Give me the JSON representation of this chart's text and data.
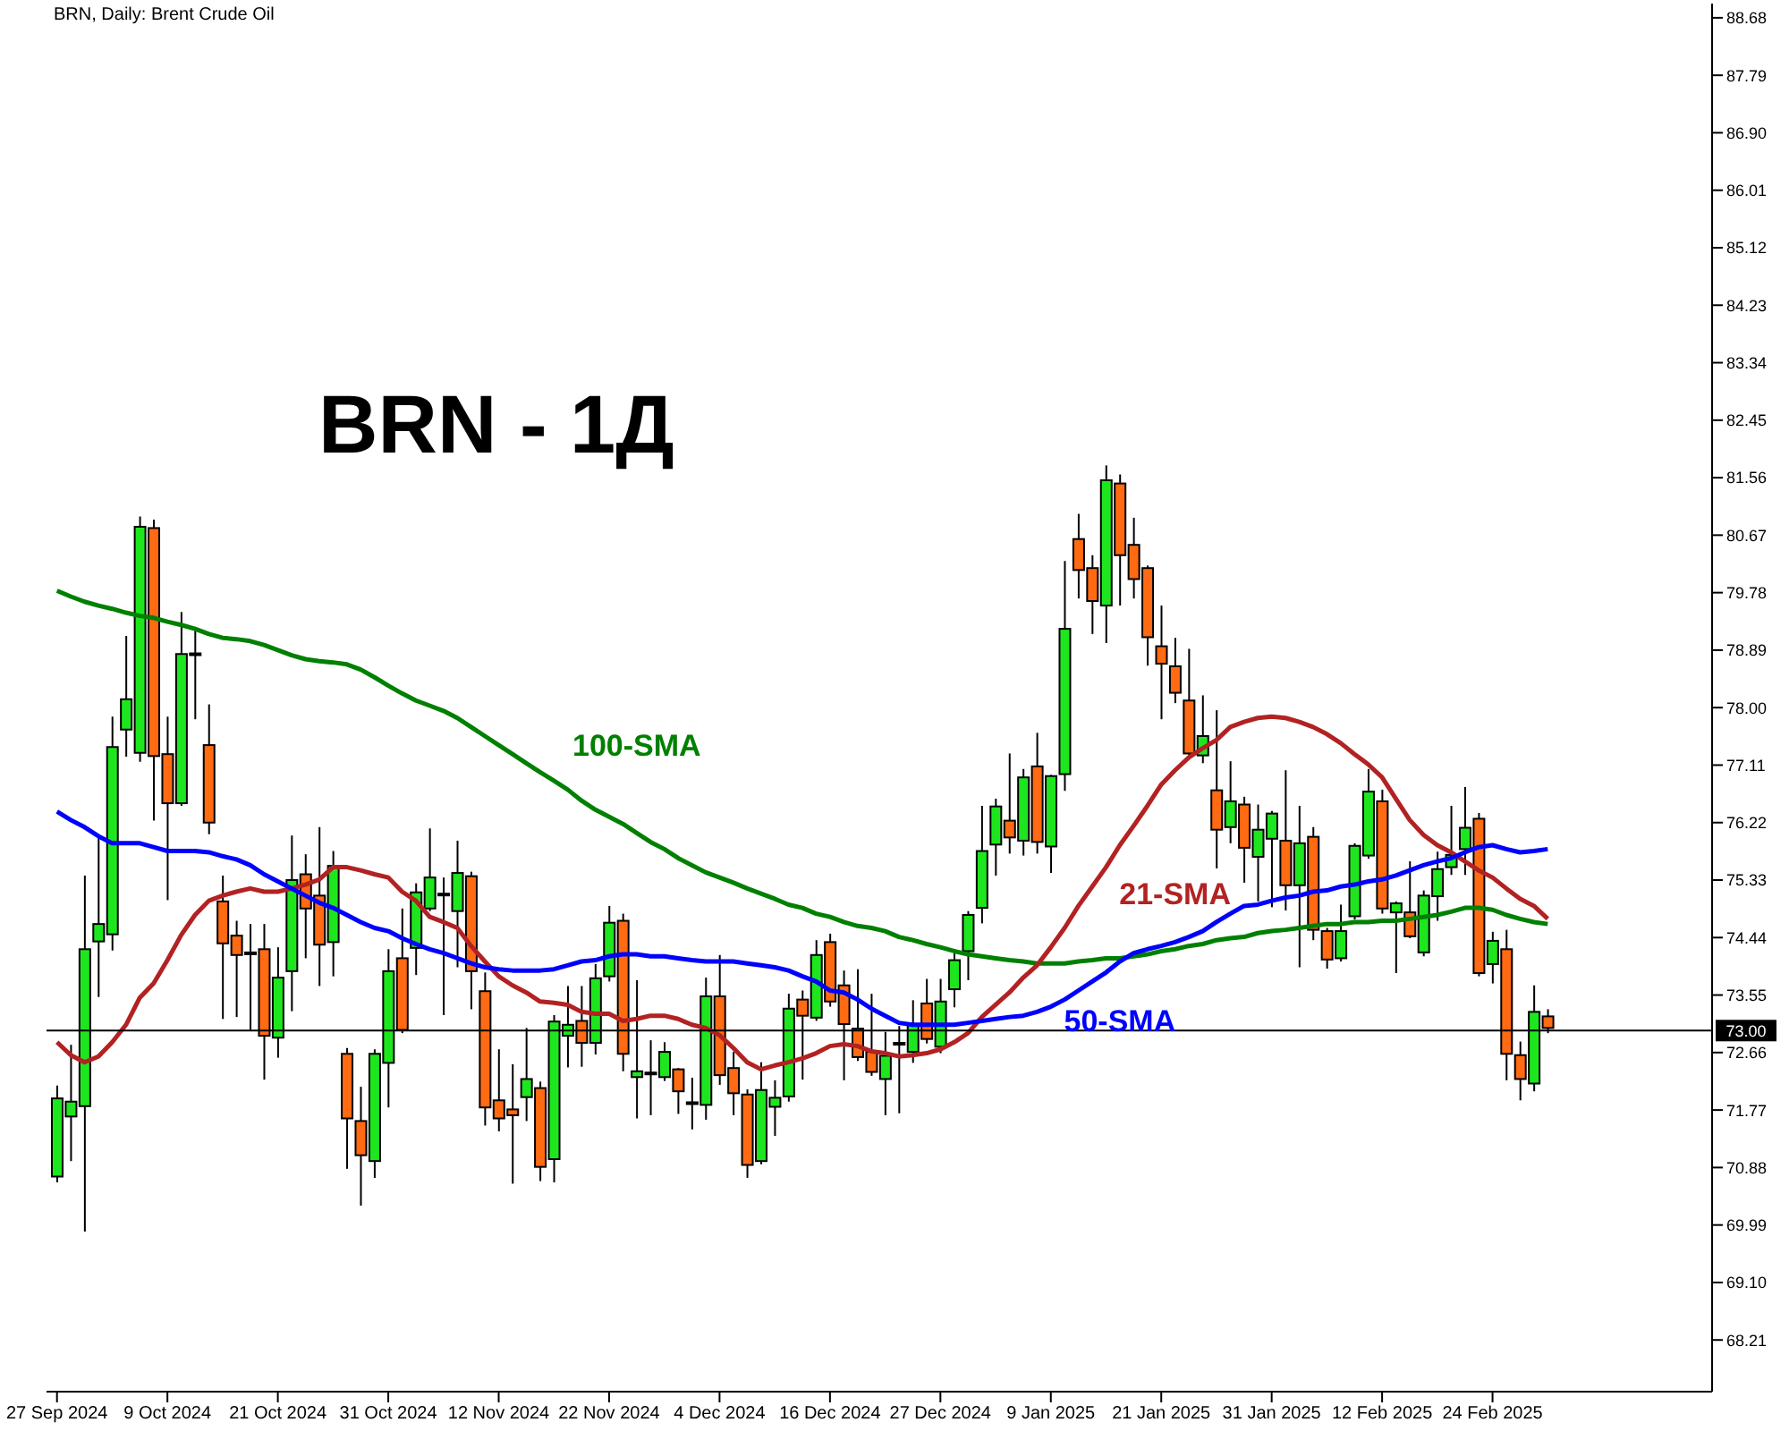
{
  "chart_data": {
    "type": "candlestick",
    "title": "BRN, Daily: Brent Crude Oil",
    "annotations": [
      "BRN - 1Д"
    ],
    "categories": [
      "27 Sep 2024",
      null,
      null,
      null,
      null,
      null,
      null,
      null,
      "9 Oct 2024",
      null,
      null,
      null,
      null,
      null,
      null,
      null,
      "21 Oct 2024",
      null,
      null,
      null,
      null,
      null,
      null,
      null,
      "31 Oct 2024",
      null,
      null,
      null,
      null,
      null,
      null,
      null,
      "12 Nov 2024",
      null,
      null,
      null,
      null,
      null,
      null,
      null,
      "22 Nov 2024",
      null,
      null,
      null,
      null,
      null,
      null,
      null,
      "4 Dec 2024",
      null,
      null,
      null,
      null,
      null,
      null,
      null,
      "16 Dec 2024",
      null,
      null,
      null,
      null,
      null,
      null,
      null,
      "27 Dec 2024",
      null,
      null,
      null,
      null,
      null,
      null,
      null,
      "9 Jan 2025",
      null,
      null,
      null,
      null,
      null,
      null,
      null,
      "21 Jan 2025",
      null,
      null,
      null,
      null,
      null,
      null,
      null,
      "31 Jan 2025",
      null,
      null,
      null,
      null,
      null,
      null,
      null,
      "12 Feb 2025",
      null,
      null,
      null,
      null,
      null,
      null,
      null,
      "24 Feb 2025",
      null,
      null,
      null,
      null
    ],
    "ohlc": [
      [
        70.74,
        72.15,
        70.65,
        71.95
      ],
      [
        71.67,
        72.78,
        70.98,
        71.9
      ],
      [
        71.83,
        75.4,
        69.89,
        74.26
      ],
      [
        74.38,
        76.04,
        73.52,
        74.65
      ],
      [
        74.49,
        77.86,
        74.24,
        77.39
      ],
      [
        77.66,
        79.11,
        77.24,
        78.13
      ],
      [
        77.3,
        80.96,
        77.16,
        80.8
      ],
      [
        80.78,
        80.91,
        76.25,
        77.25
      ],
      [
        77.28,
        77.86,
        75.02,
        76.52
      ],
      [
        76.52,
        79.48,
        76.48,
        78.83
      ],
      [
        78.84,
        79.25,
        77.82,
        78.82
      ],
      [
        77.42,
        78.05,
        76.04,
        76.22
      ],
      [
        75.0,
        75.4,
        73.18,
        74.35
      ],
      [
        74.47,
        74.7,
        73.21,
        74.17
      ],
      [
        74.21,
        74.65,
        73.01,
        74.19
      ],
      [
        74.26,
        74.65,
        72.24,
        72.92
      ],
      [
        72.89,
        74.29,
        72.58,
        73.82
      ],
      [
        73.92,
        76.02,
        73.3,
        75.33
      ],
      [
        75.42,
        75.73,
        74.12,
        74.89
      ],
      [
        75.09,
        76.15,
        73.69,
        74.33
      ],
      [
        74.37,
        75.78,
        73.84,
        75.55
      ],
      [
        72.64,
        72.73,
        70.86,
        71.64
      ],
      [
        71.6,
        72.13,
        70.29,
        71.07
      ],
      [
        70.98,
        72.71,
        70.72,
        72.64
      ],
      [
        72.5,
        74.26,
        71.81,
        73.92
      ],
      [
        74.12,
        74.89,
        72.96,
        73.01
      ],
      [
        74.28,
        75.28,
        73.86,
        75.14
      ],
      [
        74.89,
        76.13,
        74.85,
        75.37
      ],
      [
        75.12,
        75.37,
        73.24,
        75.1
      ],
      [
        74.85,
        75.94,
        73.98,
        75.44
      ],
      [
        75.39,
        75.46,
        73.33,
        73.92
      ],
      [
        73.61,
        73.9,
        71.53,
        71.81
      ],
      [
        71.92,
        72.71,
        71.44,
        71.64
      ],
      [
        71.78,
        72.48,
        70.63,
        71.69
      ],
      [
        71.97,
        73.04,
        71.6,
        72.25
      ],
      [
        72.11,
        72.21,
        70.67,
        70.89
      ],
      [
        71.01,
        73.24,
        70.65,
        73.14
      ],
      [
        72.92,
        73.69,
        72.43,
        73.09
      ],
      [
        73.15,
        73.69,
        72.44,
        72.81
      ],
      [
        72.81,
        74.03,
        72.63,
        73.81
      ],
      [
        73.84,
        74.93,
        73.76,
        74.67
      ],
      [
        74.7,
        74.81,
        72.37,
        72.64
      ],
      [
        72.28,
        73.78,
        71.64,
        72.37
      ],
      [
        72.35,
        72.85,
        71.69,
        72.34
      ],
      [
        72.28,
        72.82,
        72.22,
        72.67
      ],
      [
        72.4,
        72.42,
        71.71,
        72.06
      ],
      [
        71.89,
        72.27,
        71.47,
        71.87
      ],
      [
        71.85,
        73.82,
        71.62,
        73.53
      ],
      [
        73.53,
        74.17,
        72.16,
        72.31
      ],
      [
        72.42,
        72.67,
        71.69,
        72.03
      ],
      [
        72.01,
        72.09,
        70.72,
        70.92
      ],
      [
        70.98,
        72.51,
        70.93,
        72.08
      ],
      [
        71.82,
        72.23,
        71.37,
        71.96
      ],
      [
        71.98,
        73.57,
        71.9,
        73.34
      ],
      [
        73.48,
        73.62,
        72.24,
        73.23
      ],
      [
        73.2,
        74.4,
        73.15,
        74.17
      ],
      [
        74.37,
        74.5,
        73.37,
        73.45
      ],
      [
        73.7,
        73.93,
        72.23,
        73.1
      ],
      [
        73.03,
        73.95,
        72.53,
        72.59
      ],
      [
        72.67,
        73.57,
        72.3,
        72.36
      ],
      [
        72.25,
        72.98,
        71.69,
        72.61
      ],
      [
        72.79,
        73.07,
        71.72,
        72.81
      ],
      [
        72.67,
        73.47,
        72.5,
        73.09
      ],
      [
        73.42,
        73.8,
        72.8,
        72.87
      ],
      [
        72.75,
        73.8,
        72.65,
        73.45
      ],
      [
        73.64,
        74.26,
        73.36,
        74.09
      ],
      [
        74.23,
        74.85,
        73.78,
        74.79
      ],
      [
        74.9,
        76.48,
        74.66,
        75.78
      ],
      [
        75.88,
        76.59,
        75.4,
        76.47
      ],
      [
        76.25,
        77.29,
        75.74,
        75.99
      ],
      [
        75.94,
        77.05,
        75.71,
        76.92
      ],
      [
        77.09,
        77.61,
        75.74,
        75.92
      ],
      [
        75.85,
        76.96,
        75.44,
        76.94
      ],
      [
        76.97,
        80.27,
        76.71,
        79.22
      ],
      [
        80.61,
        81.0,
        79.69,
        80.13
      ],
      [
        80.16,
        80.36,
        79.14,
        79.65
      ],
      [
        79.58,
        81.75,
        79.0,
        81.52
      ],
      [
        81.47,
        81.61,
        79.58,
        80.36
      ],
      [
        80.52,
        80.94,
        79.69,
        79.99
      ],
      [
        80.16,
        80.2,
        78.65,
        79.09
      ],
      [
        78.95,
        79.58,
        77.82,
        78.68
      ],
      [
        78.64,
        79.08,
        78.07,
        78.23
      ],
      [
        78.11,
        78.91,
        77.25,
        77.29
      ],
      [
        77.26,
        78.19,
        77.14,
        77.56
      ],
      [
        76.72,
        77.96,
        75.51,
        76.11
      ],
      [
        76.15,
        77.17,
        75.9,
        76.55
      ],
      [
        76.5,
        76.62,
        75.29,
        75.83
      ],
      [
        75.69,
        76.5,
        75.0,
        76.11
      ],
      [
        75.97,
        76.4,
        74.91,
        76.36
      ],
      [
        75.94,
        77.03,
        74.86,
        75.25
      ],
      [
        75.25,
        76.48,
        73.98,
        75.9
      ],
      [
        76.0,
        76.15,
        74.4,
        74.56
      ],
      [
        74.54,
        74.59,
        73.96,
        74.1
      ],
      [
        74.12,
        74.95,
        74.07,
        74.54
      ],
      [
        74.77,
        75.9,
        74.72,
        75.86
      ],
      [
        75.71,
        77.05,
        75.66,
        76.7
      ],
      [
        76.55,
        76.73,
        74.81,
        74.89
      ],
      [
        74.83,
        75.0,
        73.89,
        74.97
      ],
      [
        74.83,
        75.62,
        74.43,
        74.46
      ],
      [
        74.21,
        75.17,
        74.15,
        75.09
      ],
      [
        75.08,
        75.77,
        74.7,
        75.5
      ],
      [
        75.53,
        76.48,
        75.41,
        75.72
      ],
      [
        75.81,
        76.77,
        75.41,
        76.14
      ],
      [
        76.28,
        76.37,
        73.84,
        73.89
      ],
      [
        74.03,
        74.53,
        73.73,
        74.39
      ],
      [
        74.26,
        74.56,
        72.23,
        72.64
      ],
      [
        72.62,
        72.83,
        71.92,
        72.25
      ],
      [
        72.18,
        73.7,
        72.06,
        73.29
      ],
      [
        73.22,
        73.33,
        72.96,
        73.04
      ]
    ],
    "colors": [
      "#1ee61e",
      "#1ee61e",
      "#1ee61e",
      "#1ee61e",
      "#1ee61e",
      "#1ee61e",
      "#1ee61e",
      "#ff6a13",
      "#ff6a13",
      "#1ee61e",
      "#ff6a13",
      "#ff6a13",
      "#ff6a13",
      "#ff6a13",
      "#ff6a13",
      "#ff6a13",
      "#1ee61e",
      "#1ee61e",
      "#ff6a13",
      "#ff6a13",
      "#1ee61e",
      "#ff6a13",
      "#ff6a13",
      "#1ee61e",
      "#1ee61e",
      "#ff6a13",
      "#1ee61e",
      "#1ee61e",
      "#ff6a13",
      "#1ee61e",
      "#ff6a13",
      "#ff6a13",
      "#ff6a13",
      "#ff6a13",
      "#1ee61e",
      "#ff6a13",
      "#1ee61e",
      "#1ee61e",
      "#ff6a13",
      "#1ee61e",
      "#1ee61e",
      "#ff6a13",
      "#1ee61e",
      "#ff6a13",
      "#1ee61e",
      "#ff6a13",
      "#ff6a13",
      "#1ee61e",
      "#ff6a13",
      "#ff6a13",
      "#ff6a13",
      "#1ee61e",
      "#1ee61e",
      "#1ee61e",
      "#ff6a13",
      "#1ee61e",
      "#ff6a13",
      "#ff6a13",
      "#ff6a13",
      "#ff6a13",
      "#1ee61e",
      "#1ee61e",
      "#1ee61e",
      "#ff6a13",
      "#1ee61e",
      "#1ee61e",
      "#1ee61e",
      "#1ee61e",
      "#1ee61e",
      "#ff6a13",
      "#1ee61e",
      "#ff6a13",
      "#1ee61e",
      "#1ee61e",
      "#ff6a13",
      "#ff6a13",
      "#1ee61e",
      "#ff6a13",
      "#ff6a13",
      "#ff6a13",
      "#ff6a13",
      "#ff6a13",
      "#ff6a13",
      "#1ee61e",
      "#ff6a13",
      "#1ee61e",
      "#ff6a13",
      "#1ee61e",
      "#1ee61e",
      "#ff6a13",
      "#1ee61e",
      "#ff6a13",
      "#ff6a13",
      "#1ee61e",
      "#1ee61e",
      "#1ee61e",
      "#ff6a13",
      "#1ee61e",
      "#ff6a13",
      "#1ee61e",
      "#1ee61e",
      "#1ee61e",
      "#1ee61e",
      "#ff6a13",
      "#1ee61e",
      "#ff6a13",
      "#ff6a13",
      "#1ee61e",
      "#ff6a13"
    ],
    "series": [
      {
        "type": "line",
        "name": "100-SMA",
        "color": "#008000",
        "values": [
          79.81,
          79.72,
          79.64,
          79.58,
          79.53,
          79.47,
          79.42,
          79.39,
          79.33,
          79.28,
          79.22,
          79.14,
          79.08,
          79.06,
          79.03,
          78.97,
          78.89,
          78.81,
          78.75,
          78.72,
          78.7,
          78.67,
          78.59,
          78.47,
          78.34,
          78.22,
          78.11,
          78.03,
          77.95,
          77.84,
          77.7,
          77.56,
          77.42,
          77.28,
          77.14,
          77.0,
          76.87,
          76.73,
          76.56,
          76.42,
          76.31,
          76.2,
          76.06,
          75.92,
          75.81,
          75.67,
          75.56,
          75.45,
          75.37,
          75.29,
          75.2,
          75.12,
          75.04,
          74.95,
          74.9,
          74.81,
          74.76,
          74.68,
          74.62,
          74.59,
          74.54,
          74.45,
          74.4,
          74.34,
          74.29,
          74.23,
          74.18,
          74.15,
          74.12,
          74.09,
          74.07,
          74.04,
          74.04,
          74.04,
          74.07,
          74.09,
          74.12,
          74.12,
          74.15,
          74.18,
          74.23,
          74.26,
          74.31,
          74.34,
          74.4,
          74.43,
          74.45,
          74.51,
          74.54,
          74.56,
          74.59,
          74.62,
          74.65,
          74.65,
          74.68,
          74.68,
          74.7,
          74.7,
          74.73,
          74.76,
          74.79,
          74.84,
          74.9,
          74.9,
          74.87,
          74.79,
          74.73,
          74.68,
          74.65
        ]
      },
      {
        "type": "line",
        "name": "21-SMA",
        "color": "#b22222",
        "values": [
          72.82,
          72.62,
          72.51,
          72.6,
          72.82,
          73.09,
          73.51,
          73.73,
          74.09,
          74.48,
          74.79,
          75.01,
          75.09,
          75.15,
          75.2,
          75.15,
          75.15,
          75.2,
          75.26,
          75.34,
          75.53,
          75.53,
          75.48,
          75.42,
          75.37,
          75.15,
          75.01,
          74.76,
          74.68,
          74.59,
          74.31,
          74.07,
          73.84,
          73.7,
          73.59,
          73.45,
          73.43,
          73.4,
          73.29,
          73.26,
          73.26,
          73.15,
          73.18,
          73.23,
          73.23,
          73.18,
          73.09,
          73.04,
          72.93,
          72.73,
          72.51,
          72.4,
          72.46,
          72.51,
          72.57,
          72.65,
          72.76,
          72.79,
          72.76,
          72.68,
          72.65,
          72.6,
          72.62,
          72.65,
          72.71,
          72.82,
          72.96,
          73.21,
          73.4,
          73.59,
          73.82,
          74.01,
          74.29,
          74.59,
          74.93,
          75.23,
          75.53,
          75.87,
          76.17,
          76.48,
          76.81,
          77.03,
          77.23,
          77.37,
          77.5,
          77.7,
          77.78,
          77.84,
          77.86,
          77.84,
          77.78,
          77.7,
          77.59,
          77.45,
          77.28,
          77.12,
          76.92,
          76.59,
          76.26,
          76.03,
          75.87,
          75.76,
          75.62,
          75.48,
          75.37,
          75.2,
          75.04,
          74.93,
          74.73
        ]
      },
      {
        "type": "line",
        "name": "50-SMA",
        "color": "#0000ff",
        "values": [
          76.39,
          76.26,
          76.15,
          76.01,
          75.9,
          75.9,
          75.9,
          75.84,
          75.78,
          75.78,
          75.78,
          75.76,
          75.7,
          75.65,
          75.56,
          75.42,
          75.31,
          75.2,
          75.09,
          74.98,
          74.9,
          74.79,
          74.68,
          74.59,
          74.54,
          74.43,
          74.34,
          74.26,
          74.2,
          74.12,
          74.04,
          73.98,
          73.95,
          73.93,
          73.93,
          73.93,
          73.95,
          74.01,
          74.07,
          74.09,
          74.15,
          74.18,
          74.18,
          74.15,
          74.15,
          74.12,
          74.09,
          74.07,
          74.07,
          74.07,
          74.04,
          74.01,
          73.98,
          73.93,
          73.84,
          73.76,
          73.62,
          73.59,
          73.48,
          73.34,
          73.23,
          73.12,
          73.09,
          73.09,
          73.09,
          73.09,
          73.12,
          73.15,
          73.18,
          73.21,
          73.23,
          73.29,
          73.37,
          73.48,
          73.62,
          73.76,
          73.9,
          74.07,
          74.2,
          74.26,
          74.31,
          74.37,
          74.45,
          74.54,
          74.68,
          74.81,
          74.93,
          74.95,
          75.01,
          75.06,
          75.09,
          75.15,
          75.17,
          75.23,
          75.26,
          75.31,
          75.34,
          75.4,
          75.48,
          75.56,
          75.62,
          75.67,
          75.76,
          75.84,
          75.87,
          75.81,
          75.76,
          75.78,
          75.81
        ]
      }
    ],
    "ylim": [
      67.41,
      88.9
    ],
    "yticks": [
      68.21,
      {
        "value": 69.1,
        "label": "69.10"
      },
      69.99,
      70.88,
      71.77,
      72.66,
      73.55,
      74.44,
      75.33,
      76.22,
      77.11,
      {
        "value": 78,
        "label": "78.00"
      },
      78.89,
      79.78,
      80.67,
      81.56,
      82.45,
      83.34,
      84.23,
      85.12,
      86.01,
      {
        "value": 86.9,
        "label": "86.90"
      },
      87.79,
      88.68
    ],
    "ref_lines": [
      {
        "axis": "y",
        "value": 73,
        "label": "73.00",
        "color": "#000000"
      }
    ],
    "marker": "none",
    "line_style": "solid"
  }
}
